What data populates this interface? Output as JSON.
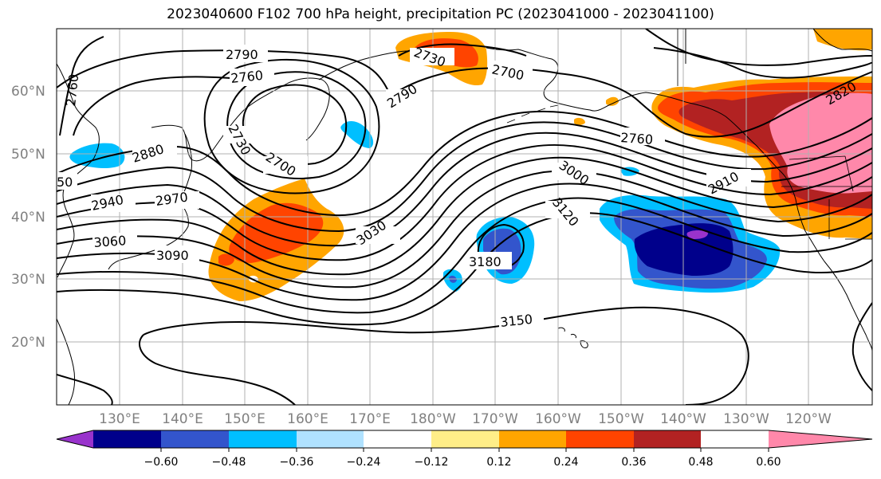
{
  "title": "2023040600 F102 700 hPa height, precipitation PC (2023041000 - 2023041100)",
  "colors": {
    "coast": "#000000",
    "contour": "#000000",
    "grid": "#b0b0b0"
  },
  "latitude_labels": [
    "60°N",
    "50°N",
    "40°N",
    "30°N",
    "20°N"
  ],
  "longitude_labels": [
    "130°E",
    "140°E",
    "150°E",
    "160°E",
    "170°E",
    "180°W",
    "170°W",
    "160°W",
    "150°W",
    "140°W",
    "130°W",
    "120°W"
  ],
  "contour_labels": [
    "2790",
    "2760",
    "2730",
    "2700",
    "2760",
    "2880",
    "50",
    "2940",
    "2970",
    "3060",
    "3090",
    "2730",
    "2700",
    "2790",
    "3030",
    "3000",
    "3120",
    "3180",
    "2760",
    "2910",
    "2820",
    "3150",
    "2700"
  ],
  "colorbar": {
    "colors": [
      "#9933cc",
      "#00008b",
      "#3355cc",
      "#00bfff",
      "#b0e2ff",
      "#ffffff",
      "#ffee88",
      "#ffa500",
      "#ff4400",
      "#b22222",
      "#ff88aa"
    ],
    "tick_labels": [
      "−0.60",
      "−0.48",
      "−0.36",
      "−0.24",
      "−0.12",
      "0.12",
      "0.24",
      "0.36",
      "0.48",
      "0.60"
    ]
  }
}
